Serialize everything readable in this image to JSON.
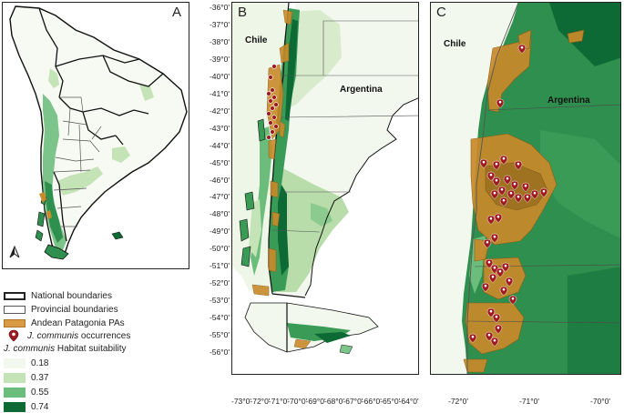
{
  "panels": {
    "a": {
      "label": "A"
    },
    "b": {
      "label": "B",
      "chile": "Chile",
      "argentina": "Argentina"
    },
    "c": {
      "label": "C",
      "chile": "Chile",
      "argentina": "Argentina"
    }
  },
  "north_arrow": "north-arrow-icon",
  "axes_b": {
    "y_ticks": [
      "-36°0'",
      "-37°0'",
      "-38°0'",
      "-39°0'",
      "-40°0'",
      "-41°0'",
      "-42°0'",
      "-43°0'",
      "-44°0'",
      "-45°0'",
      "-46°0'",
      "-47°0'",
      "-48°0'",
      "-49°0'",
      "-50°0'",
      "-51°0'",
      "-52°0'",
      "-53°0'",
      "-54°0'",
      "-55°0'",
      "-56°0'"
    ],
    "x_ticks": [
      "-73°0'",
      "-72°0'",
      "-71°0'",
      "-70°0'",
      "-69°0'",
      "-68°0'",
      "-67°0'",
      "-66°0'",
      "-65°0'",
      "-64°0'"
    ]
  },
  "axes_c": {
    "x_ticks": [
      "-72°0'",
      "-71°0'",
      "-70°0'"
    ]
  },
  "legend": {
    "national": "National boundaries",
    "provincial": "Provincial boundaries",
    "pas": "Andean Patagonia PAs",
    "occ_species": "J. communis",
    "occ_rest": " occurrences",
    "hs_species": "J. communis",
    "hs_rest": " Habitat suitability",
    "classes": [
      {
        "value": "0.18",
        "color": "#f3f8ee"
      },
      {
        "value": "0.37",
        "color": "#c4e3b6"
      },
      {
        "value": "0.55",
        "color": "#6cbd7b"
      },
      {
        "value": "0.74",
        "color": "#0d6a34"
      }
    ]
  },
  "colors": {
    "pa_fill": "#c98a2a",
    "pa_stroke": "#8a5a16",
    "marker": "#9e1b22",
    "border": "#222222"
  }
}
